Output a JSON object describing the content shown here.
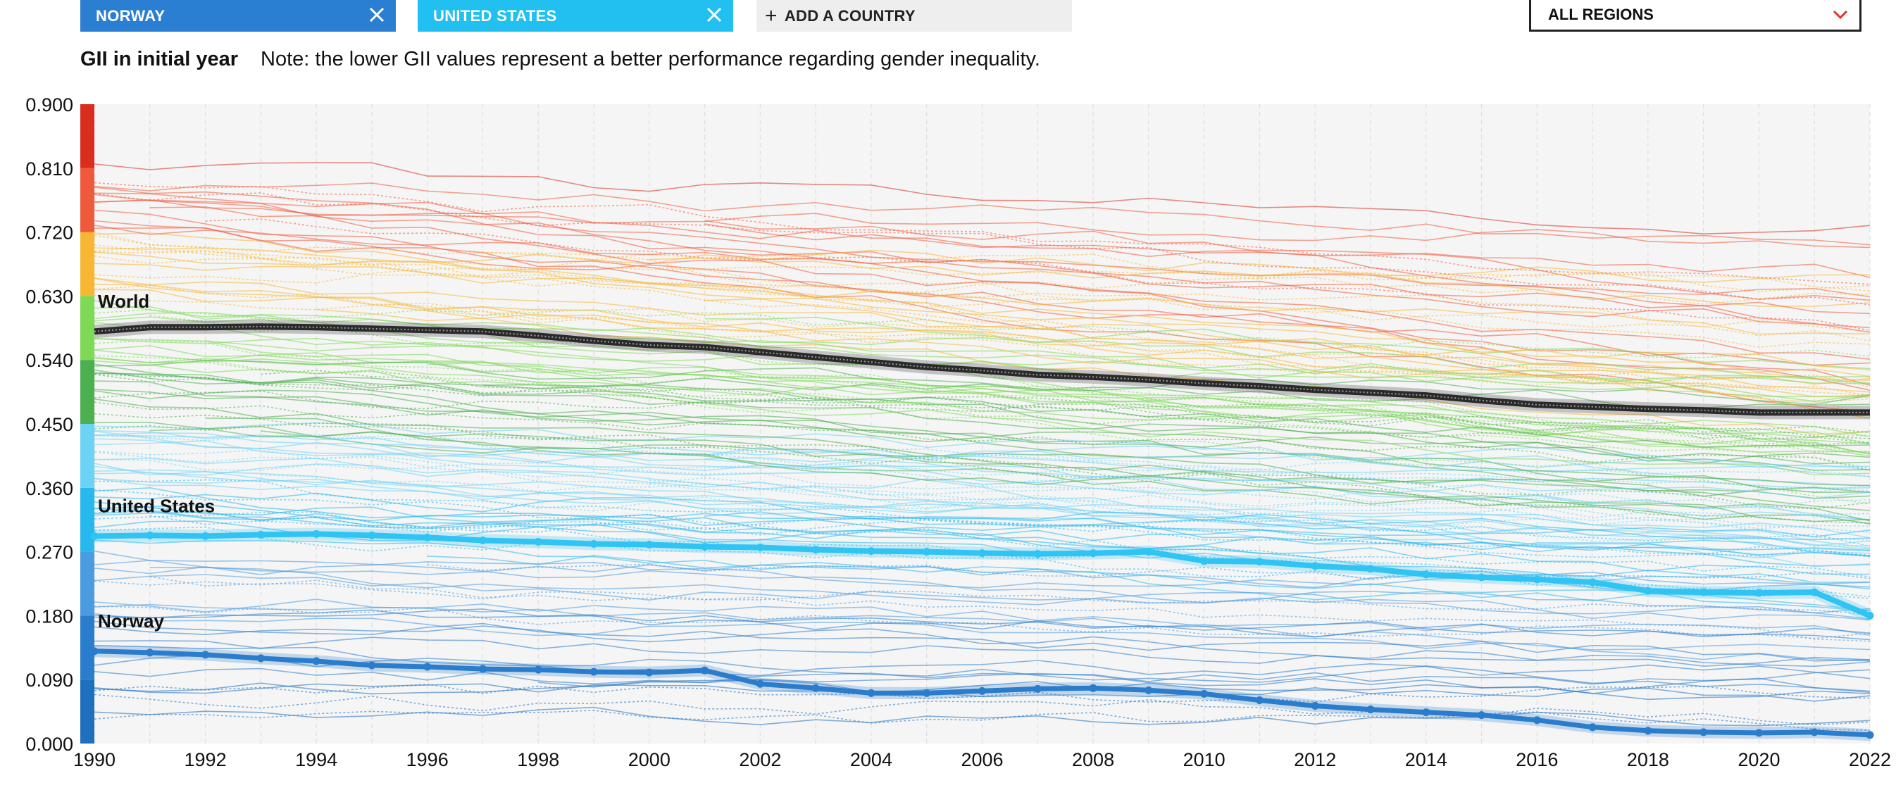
{
  "chips": {
    "norway": "NORWAY",
    "united_states": "UNITED STATES",
    "add": "ADD A COUNTRY",
    "region": "ALL REGIONS"
  },
  "note": {
    "label": "GII in initial year",
    "text": "Note: the lower GII values represent a better performance regarding gender inequality."
  },
  "colors": {
    "norway_chip": "#2b7fd2",
    "us_chip": "#22c0f1",
    "world_line": "#2a2a2a",
    "us_line": "#2fc4f4",
    "norway_line": "#2a7ccc",
    "chevron": "#e0332e"
  },
  "icons": {
    "chip_remove": "close-icon",
    "add": "plus-icon",
    "dropdown": "chevron-down-icon"
  },
  "chart_data": {
    "type": "line",
    "title": "",
    "xlabel": "",
    "ylabel": "",
    "xlim": [
      1990,
      2022
    ],
    "ylim": [
      0,
      0.9
    ],
    "x_ticks": [
      "1990",
      "1992",
      "1994",
      "1996",
      "1998",
      "2000",
      "2002",
      "2004",
      "2006",
      "2008",
      "2010",
      "2012",
      "2014",
      "2016",
      "2018",
      "2020",
      "2022"
    ],
    "y_ticks": [
      "0.000",
      "0.090",
      "0.180",
      "0.270",
      "0.360",
      "0.450",
      "0.540",
      "0.630",
      "0.720",
      "0.810",
      "0.900"
    ],
    "grid": true,
    "color_scale": [
      {
        "from": 0.0,
        "to": 0.09,
        "color": "#1f6fbf"
      },
      {
        "from": 0.09,
        "to": 0.18,
        "color": "#2a7ccc"
      },
      {
        "from": 0.18,
        "to": 0.27,
        "color": "#4a9be0"
      },
      {
        "from": 0.27,
        "to": 0.36,
        "color": "#27b8ee"
      },
      {
        "from": 0.36,
        "to": 0.45,
        "color": "#6dd3f5"
      },
      {
        "from": 0.45,
        "to": 0.54,
        "color": "#4caf50"
      },
      {
        "from": 0.54,
        "to": 0.63,
        "color": "#7ed957"
      },
      {
        "from": 0.63,
        "to": 0.72,
        "color": "#f7b733"
      },
      {
        "from": 0.72,
        "to": 0.81,
        "color": "#f05a3c"
      },
      {
        "from": 0.81,
        "to": 0.9,
        "color": "#d92d1e"
      }
    ],
    "series": [
      {
        "name": "World",
        "x": [
          1990,
          1991,
          1992,
          1993,
          1994,
          1995,
          1996,
          1997,
          1998,
          1999,
          2000,
          2001,
          2002,
          2003,
          2004,
          2005,
          2006,
          2007,
          2008,
          2009,
          2010,
          2011,
          2012,
          2013,
          2014,
          2015,
          2016,
          2017,
          2018,
          2019,
          2020,
          2021,
          2022
        ],
        "values": [
          0.58,
          0.586,
          0.586,
          0.587,
          0.586,
          0.584,
          0.582,
          0.58,
          0.574,
          0.567,
          0.561,
          0.558,
          0.551,
          0.544,
          0.537,
          0.53,
          0.525,
          0.519,
          0.516,
          0.512,
          0.507,
          0.503,
          0.498,
          0.494,
          0.49,
          0.483,
          0.477,
          0.474,
          0.471,
          0.469,
          0.466,
          0.466,
          0.466
        ]
      },
      {
        "name": "United States",
        "x": [
          1990,
          1991,
          1992,
          1993,
          1994,
          1995,
          1996,
          1997,
          1998,
          1999,
          2000,
          2001,
          2002,
          2003,
          2004,
          2005,
          2006,
          2007,
          2008,
          2009,
          2010,
          2011,
          2012,
          2013,
          2014,
          2015,
          2016,
          2017,
          2018,
          2019,
          2020,
          2021,
          2022
        ],
        "values": [
          0.292,
          0.293,
          0.292,
          0.294,
          0.295,
          0.293,
          0.29,
          0.286,
          0.284,
          0.281,
          0.28,
          0.277,
          0.276,
          0.273,
          0.271,
          0.27,
          0.268,
          0.267,
          0.268,
          0.27,
          0.257,
          0.256,
          0.25,
          0.246,
          0.238,
          0.234,
          0.231,
          0.227,
          0.215,
          0.213,
          0.212,
          0.213,
          0.18
        ]
      },
      {
        "name": "Norway",
        "x": [
          1990,
          1991,
          1992,
          1993,
          1994,
          1995,
          1996,
          1997,
          1998,
          1999,
          2000,
          2001,
          2002,
          2003,
          2004,
          2005,
          2006,
          2007,
          2008,
          2009,
          2010,
          2011,
          2012,
          2013,
          2014,
          2015,
          2016,
          2017,
          2018,
          2019,
          2020,
          2021,
          2022
        ],
        "values": [
          0.13,
          0.128,
          0.125,
          0.12,
          0.116,
          0.11,
          0.108,
          0.105,
          0.104,
          0.101,
          0.1,
          0.103,
          0.084,
          0.078,
          0.071,
          0.071,
          0.074,
          0.077,
          0.078,
          0.075,
          0.07,
          0.061,
          0.053,
          0.048,
          0.044,
          0.04,
          0.033,
          0.023,
          0.018,
          0.016,
          0.015,
          0.016,
          0.012
        ]
      }
    ]
  }
}
